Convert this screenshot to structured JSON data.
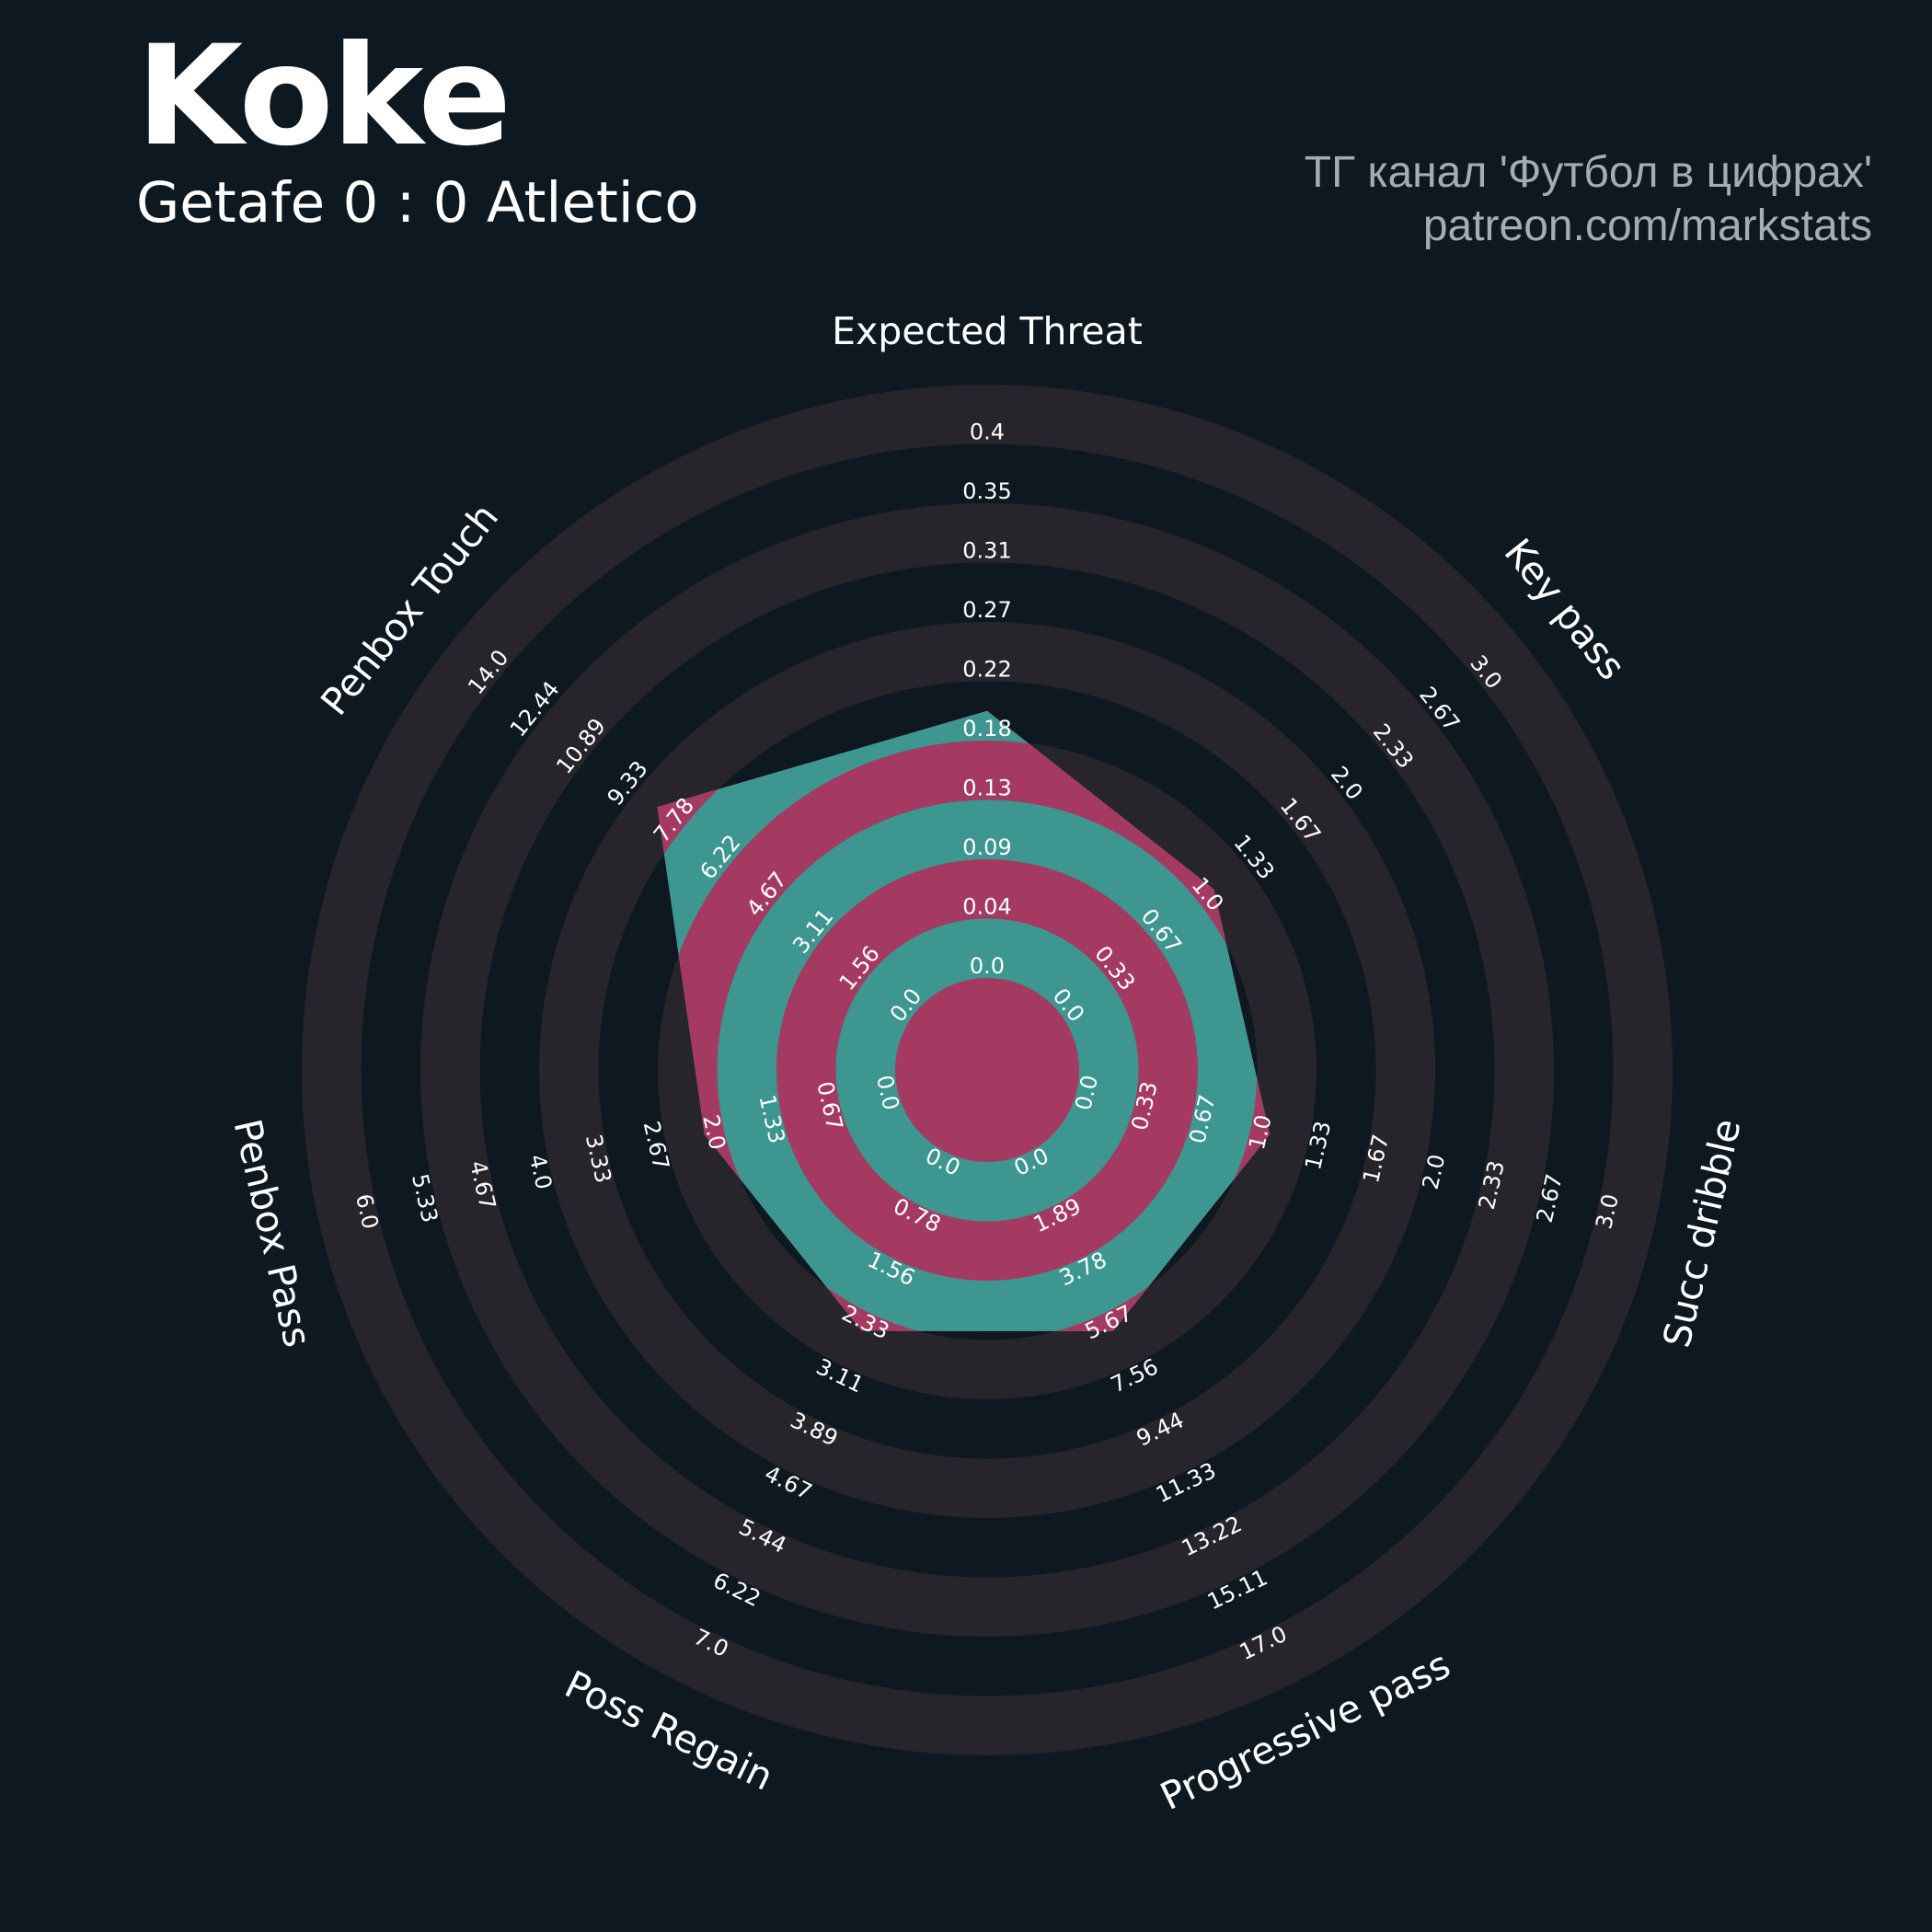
{
  "header": {
    "player": "Koke",
    "match": "Getafe 0 : 0 Atletico",
    "credit_line1": "ТГ канал 'Футбол в цифрах'",
    "credit_line2": "patreon.com/markstats"
  },
  "colors": {
    "background": "#0e1820",
    "ring_band": "#28242b",
    "polygon": "#3d9690",
    "overlap": "#a43a62",
    "text": "#ffffff"
  },
  "chart_data": {
    "type": "radar",
    "title": "Koke",
    "subtitle": "Getafe 0 : 0 Atletico",
    "grid": "alternating concentric rings",
    "axes": [
      {
        "label": "Expected Threat",
        "min": 0.0,
        "max": 0.4,
        "value": 0.18,
        "ticks": [
          "0.0",
          "0.04",
          "0.09",
          "0.13",
          "0.18",
          "0.22",
          "0.27",
          "0.31",
          "0.35",
          "0.4"
        ]
      },
      {
        "label": "Key pass",
        "min": 0.0,
        "max": 3.0,
        "value": 1.0,
        "ticks": [
          "0.0",
          "0.33",
          "0.67",
          "1.0",
          "1.33",
          "1.67",
          "2.0",
          "2.33",
          "2.67",
          "3.0"
        ]
      },
      {
        "label": "Succ dribble",
        "min": 0.0,
        "max": 3.0,
        "value": 1.0,
        "ticks": [
          "0.0",
          "0.33",
          "0.67",
          "1.0",
          "1.33",
          "1.67",
          "2.0",
          "2.33",
          "2.67",
          "3.0"
        ]
      },
      {
        "label": "Progressive pass",
        "min": 0.0,
        "max": 17.0,
        "value": 5.67,
        "ticks": [
          "0.0",
          "1.89",
          "3.78",
          "5.67",
          "7.56",
          "9.44",
          "11.33",
          "13.22",
          "15.11",
          "17.0"
        ]
      },
      {
        "label": "Poss Regain",
        "min": 0.0,
        "max": 7.0,
        "value": 2.33,
        "ticks": [
          "0.0",
          "0.78",
          "1.56",
          "2.33",
          "3.11",
          "3.89",
          "4.67",
          "5.44",
          "6.22",
          "7.0"
        ]
      },
      {
        "label": "Penbox Pass",
        "min": 0.0,
        "max": 6.0,
        "value": 2.0,
        "ticks": [
          "0.0",
          "0.67",
          "1.33",
          "2.0",
          "2.67",
          "3.33",
          "4.0",
          "4.67",
          "5.33",
          "6.0"
        ]
      },
      {
        "label": "Penbox Touch",
        "min": 0.0,
        "max": 14.0,
        "value": 7.78,
        "ticks": [
          "0.0",
          "1.56",
          "3.11",
          "4.67",
          "6.22",
          "7.78",
          "9.33",
          "10.89",
          "12.44",
          "14.0"
        ]
      }
    ]
  }
}
